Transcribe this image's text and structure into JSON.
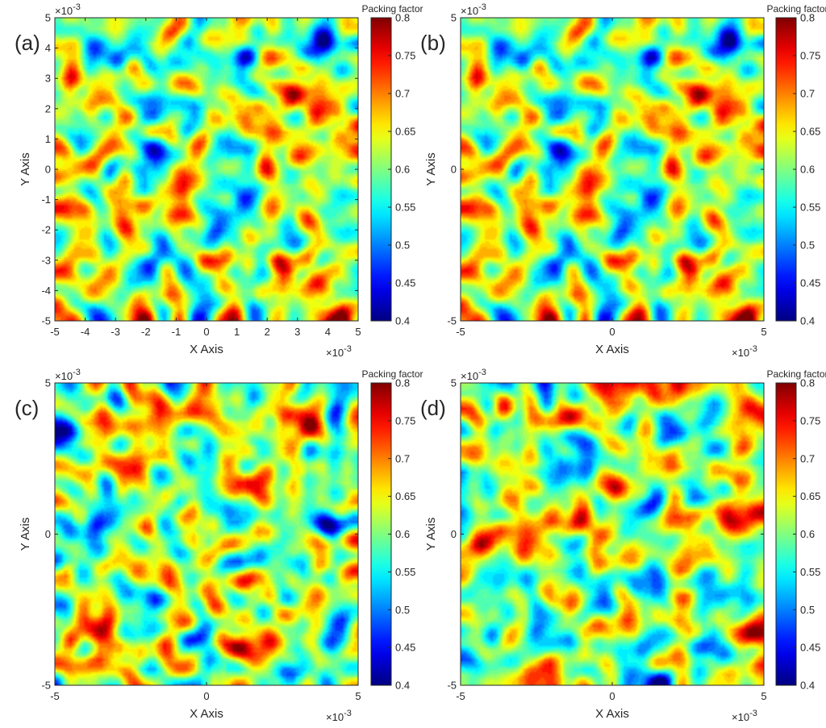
{
  "chart_data": [
    {
      "panel_label": "(a)",
      "type": "heatmap",
      "xlabel": "X Axis",
      "ylabel": "Y Axis",
      "x_exponent": "×10",
      "x_exponent_power": "-3",
      "y_exponent": "×10",
      "y_exponent_power": "-3",
      "xlim": [
        -5,
        5
      ],
      "ylim": [
        -5,
        5
      ],
      "xticks": [
        -5,
        -4,
        -3,
        -2,
        -1,
        0,
        1,
        2,
        3,
        4,
        5
      ],
      "yticks": [
        -5,
        -4,
        -3,
        -2,
        -1,
        0,
        1,
        2,
        3,
        4,
        5
      ],
      "colorbar": {
        "title": "Packing factor",
        "range": [
          0.4,
          0.8
        ],
        "ticks": [
          0.4,
          0.45,
          0.5,
          0.55,
          0.6,
          0.65,
          0.7,
          0.75,
          0.8
        ],
        "colormap": "jet"
      },
      "seed": 11
    },
    {
      "panel_label": "(b)",
      "type": "heatmap",
      "xlabel": "X Axis",
      "ylabel": "Y Axis",
      "x_exponent": "×10",
      "x_exponent_power": "-3",
      "y_exponent": "×10",
      "y_exponent_power": "-3",
      "xlim": [
        -5,
        5
      ],
      "ylim": [
        -5,
        5
      ],
      "xticks": [
        -5,
        0,
        5
      ],
      "yticks": [
        -5,
        0,
        5
      ],
      "colorbar": {
        "title": "Packing factor",
        "range": [
          0.4,
          0.8
        ],
        "ticks": [
          0.4,
          0.45,
          0.5,
          0.55,
          0.6,
          0.65,
          0.7,
          0.75,
          0.8
        ],
        "colormap": "jet"
      },
      "seed": 11
    },
    {
      "panel_label": "(c)",
      "type": "heatmap",
      "xlabel": "X Axis",
      "ylabel": "Y Axis",
      "x_exponent": "×10",
      "x_exponent_power": "-3",
      "y_exponent": "×10",
      "y_exponent_power": "-3",
      "xlim": [
        -5,
        5
      ],
      "ylim": [
        -5,
        5
      ],
      "xticks": [
        -5,
        0,
        5
      ],
      "yticks": [
        -5,
        0,
        5
      ],
      "colorbar": {
        "title": "Packing factor",
        "range": [
          0.4,
          0.8
        ],
        "ticks": [
          0.4,
          0.45,
          0.5,
          0.55,
          0.6,
          0.65,
          0.7,
          0.75,
          0.8
        ],
        "colormap": "jet"
      },
      "seed": 37
    },
    {
      "panel_label": "(d)",
      "type": "heatmap",
      "xlabel": "X Axis",
      "ylabel": "Y Axis",
      "x_exponent": "×10",
      "x_exponent_power": "-3",
      "y_exponent": "×10",
      "y_exponent_power": "-3",
      "xlim": [
        -5,
        5
      ],
      "ylim": [
        -5,
        5
      ],
      "xticks": [
        -5,
        0,
        5
      ],
      "yticks": [
        -5,
        0,
        5
      ],
      "colorbar": {
        "title": "Packing factor",
        "range": [
          0.4,
          0.8
        ],
        "ticks": [
          0.4,
          0.45,
          0.5,
          0.55,
          0.6,
          0.65,
          0.7,
          0.75,
          0.8
        ],
        "colormap": "jet"
      },
      "seed": 73
    }
  ]
}
